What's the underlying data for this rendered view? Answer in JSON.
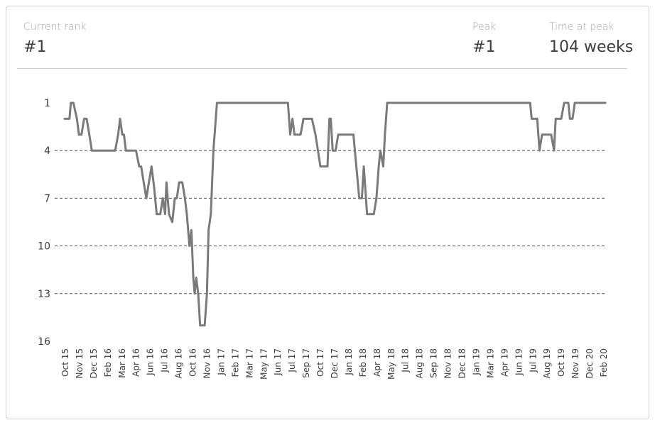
{
  "header": {
    "current_rank_label": "Current rank",
    "current_rank_value": "#1",
    "peak_label": "Peak",
    "peak_value": "#1",
    "time_at_peak_label": "Time at peak",
    "time_at_peak_value": "104 weeks"
  },
  "colors": {
    "line": "#7a7a7a",
    "grid": "#555555",
    "text": "#3d3d3d",
    "muted": "#a5a5a5",
    "border": "#cfcfcf"
  },
  "chart_data": {
    "type": "line",
    "title": "",
    "xlabel": "",
    "ylabel": "",
    "y_reversed": true,
    "ylim": [
      1,
      16
    ],
    "y_ticks": [
      "1",
      "4",
      "7",
      "10",
      "13",
      "16"
    ],
    "grid": "dashed horizontal",
    "x_ticks": [
      "Oct 15",
      "Nov 15",
      "Dec 15",
      "Feb 16",
      "Mar 16",
      "Apr 16",
      "Jun 16",
      "Jul 16",
      "Aug 16",
      "Oct 16",
      "Nov 16",
      "Jan 17",
      "Feb 17",
      "Mar 17",
      "May 17",
      "Jun 17",
      "Jul 17",
      "Sep 17",
      "Oct 17",
      "Dec 17",
      "Jan 18",
      "Feb 18",
      "Apr 18",
      "May 18",
      "Jul 18",
      "Aug 18",
      "Sep 18",
      "Nov 18",
      "Dec 18",
      "Jan 19",
      "Mar 19",
      "Apr 19",
      "Jun 19",
      "Jul 19",
      "Aug 19",
      "Oct 19",
      "Nov 19",
      "Dec 20",
      "Feb 20"
    ],
    "series": [
      {
        "points": [
          [
            "2015-10-01",
            2
          ],
          [
            "2015-10-16",
            2
          ],
          [
            "2015-10-20",
            1
          ],
          [
            "2015-10-28",
            1
          ],
          [
            "2015-11-08",
            2
          ],
          [
            "2015-11-14",
            3
          ],
          [
            "2015-11-22",
            3
          ],
          [
            "2015-11-30",
            2
          ],
          [
            "2015-12-08",
            2
          ],
          [
            "2015-12-16",
            3
          ],
          [
            "2015-12-24",
            4
          ],
          [
            "2016-03-05",
            4
          ],
          [
            "2016-03-14",
            3
          ],
          [
            "2016-03-20",
            2
          ],
          [
            "2016-03-27",
            3
          ],
          [
            "2016-04-01",
            3
          ],
          [
            "2016-04-07",
            4
          ],
          [
            "2016-05-08",
            4
          ],
          [
            "2016-05-18",
            5
          ],
          [
            "2016-05-24",
            5
          ],
          [
            "2016-06-01",
            6
          ],
          [
            "2016-06-09",
            7
          ],
          [
            "2016-06-17",
            6
          ],
          [
            "2016-06-25",
            5
          ],
          [
            "2016-07-03",
            6.3
          ],
          [
            "2016-07-11",
            8
          ],
          [
            "2016-07-22",
            8
          ],
          [
            "2016-07-30",
            7
          ],
          [
            "2016-08-06",
            8
          ],
          [
            "2016-08-10",
            6
          ],
          [
            "2016-08-18",
            8
          ],
          [
            "2016-08-28",
            8.5
          ],
          [
            "2016-09-05",
            7
          ],
          [
            "2016-09-11",
            7
          ],
          [
            "2016-09-18",
            6
          ],
          [
            "2016-09-28",
            6
          ],
          [
            "2016-10-06",
            7
          ],
          [
            "2016-10-12",
            8
          ],
          [
            "2016-10-20",
            10
          ],
          [
            "2016-10-26",
            9
          ],
          [
            "2016-11-01",
            12
          ],
          [
            "2016-11-05",
            13
          ],
          [
            "2016-11-10",
            12
          ],
          [
            "2016-11-16",
            13
          ],
          [
            "2016-11-22",
            15
          ],
          [
            "2016-12-06",
            15
          ],
          [
            "2016-12-13",
            13
          ],
          [
            "2016-12-18",
            9
          ],
          [
            "2016-12-25",
            8
          ],
          [
            "2017-01-02",
            4
          ],
          [
            "2017-01-13",
            1
          ],
          [
            "2017-08-20",
            1
          ],
          [
            "2017-08-27",
            3
          ],
          [
            "2017-09-03",
            2
          ],
          [
            "2017-09-09",
            3
          ],
          [
            "2017-09-28",
            3
          ],
          [
            "2017-10-07",
            2
          ],
          [
            "2017-11-02",
            2
          ],
          [
            "2017-11-13",
            3
          ],
          [
            "2017-11-28",
            5
          ],
          [
            "2017-12-20",
            5
          ],
          [
            "2017-12-26",
            2
          ],
          [
            "2017-12-30",
            2
          ],
          [
            "2018-01-05",
            4
          ],
          [
            "2018-01-14",
            4
          ],
          [
            "2018-01-22",
            3
          ],
          [
            "2018-03-10",
            3
          ],
          [
            "2018-03-28",
            7
          ],
          [
            "2018-04-05",
            7
          ],
          [
            "2018-04-11",
            5
          ],
          [
            "2018-04-21",
            8
          ],
          [
            "2018-05-12",
            8
          ],
          [
            "2018-05-20",
            7
          ],
          [
            "2018-05-27",
            5
          ],
          [
            "2018-06-01",
            4
          ],
          [
            "2018-06-10",
            5
          ],
          [
            "2018-06-15",
            3
          ],
          [
            "2018-06-22",
            1
          ],
          [
            "2019-09-06",
            1
          ],
          [
            "2019-09-11",
            2
          ],
          [
            "2019-09-28",
            2
          ],
          [
            "2019-10-05",
            4
          ],
          [
            "2019-10-13",
            3
          ],
          [
            "2019-11-10",
            3
          ],
          [
            "2019-11-19",
            4
          ],
          [
            "2019-11-24",
            2
          ],
          [
            "2019-12-11",
            2
          ],
          [
            "2019-12-20",
            1
          ],
          [
            "2020-01-02",
            1
          ],
          [
            "2020-01-07",
            2
          ],
          [
            "2020-01-15",
            2
          ],
          [
            "2020-01-22",
            1
          ],
          [
            "2020-04-25",
            1
          ]
        ]
      }
    ]
  }
}
